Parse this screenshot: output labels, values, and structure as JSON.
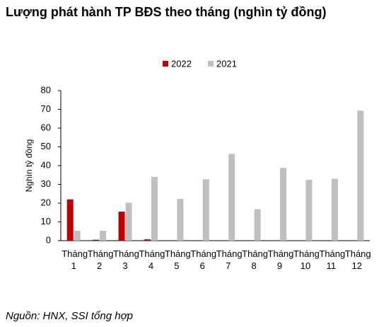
{
  "chart_data": {
    "type": "bar",
    "title": "Lượng phát hành TP BĐS theo tháng (nghìn tỷ đồng)",
    "y_label": "Nghìn tỷ đồng",
    "source": "Nguồn: HNX, SSI tổng hợp",
    "categories": [
      "Tháng 1",
      "Tháng 2",
      "Tháng 3",
      "Tháng 4",
      "Tháng 5",
      "Tháng 6",
      "Tháng 7",
      "Tháng 8",
      "Tháng 9",
      "Tháng 10",
      "Tháng 11",
      "Tháng 12"
    ],
    "series": [
      {
        "name": "2022",
        "color": "#c00000",
        "values": [
          22,
          0.5,
          15.5,
          0.7,
          null,
          null,
          null,
          null,
          null,
          null,
          null,
          null
        ]
      },
      {
        "name": "2021",
        "color": "#bfbfbf",
        "values": [
          5.3,
          5.3,
          20.2,
          34,
          22.3,
          32.7,
          46.3,
          16.8,
          38.8,
          32.5,
          33,
          69.3
        ]
      }
    ],
    "ylim": [
      0,
      80
    ],
    "yticks": [
      0,
      10,
      20,
      30,
      40,
      50,
      60,
      70,
      80
    ],
    "grid": false,
    "legend": "top"
  }
}
